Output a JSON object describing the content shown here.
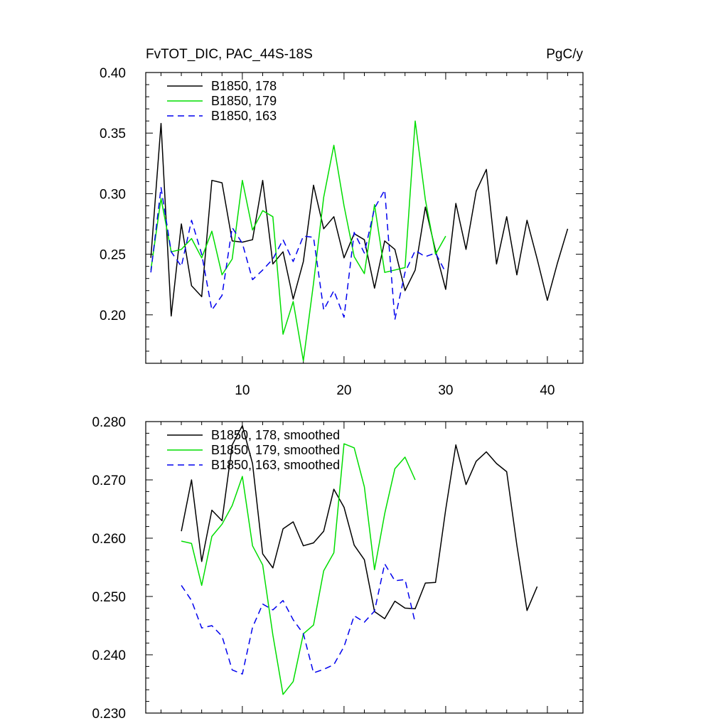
{
  "chart_data": [
    {
      "type": "line",
      "title": "FvTOT_DIC, PAC_44S-18S",
      "units": "PgC/y",
      "xlim": [
        0.5,
        43.5
      ],
      "ylim": [
        0.16,
        0.4
      ],
      "xticks": [
        10,
        20,
        30,
        40
      ],
      "yticks": [
        "0.40",
        "0.35",
        "0.30",
        "0.25",
        "0.20"
      ],
      "legend_position": "top-left",
      "series": [
        {
          "name": "B1850, 178",
          "color": "#000000",
          "dash": "solid",
          "x": [
            1,
            2,
            3,
            4,
            5,
            6,
            7,
            8,
            9,
            10,
            11,
            12,
            13,
            14,
            15,
            16,
            17,
            18,
            19,
            20,
            21,
            22,
            23,
            24,
            25,
            26,
            27,
            28,
            29,
            30,
            31,
            32,
            33,
            34,
            35,
            36,
            37,
            38,
            39,
            40,
            41,
            42
          ],
          "values": [
            0.247,
            0.358,
            0.199,
            0.275,
            0.224,
            0.215,
            0.311,
            0.309,
            0.261,
            0.26,
            0.262,
            0.311,
            0.242,
            0.252,
            0.213,
            0.244,
            0.307,
            0.271,
            0.281,
            0.247,
            0.267,
            0.262,
            0.222,
            0.261,
            0.254,
            0.22,
            0.237,
            0.289,
            0.253,
            0.221,
            0.292,
            0.254,
            0.302,
            0.32,
            0.242,
            0.281,
            0.233,
            0.278,
            0.246,
            0.212,
            0.243,
            0.271
          ]
        },
        {
          "name": "B1850, 179",
          "color": "#00dd00",
          "dash": "solid",
          "x": [
            1,
            2,
            3,
            4,
            5,
            6,
            7,
            8,
            9,
            10,
            11,
            12,
            13,
            14,
            15,
            16,
            17,
            18,
            19,
            20,
            21,
            22,
            23,
            24,
            25,
            26,
            27,
            28,
            29,
            30
          ],
          "values": [
            0.237,
            0.296,
            0.252,
            0.254,
            0.263,
            0.247,
            0.269,
            0.233,
            0.246,
            0.311,
            0.27,
            0.286,
            0.281,
            0.184,
            0.211,
            0.162,
            0.226,
            0.297,
            0.34,
            0.29,
            0.248,
            0.234,
            0.291,
            0.235,
            0.237,
            0.239,
            0.36,
            0.295,
            0.25,
            0.265
          ]
        },
        {
          "name": "B1850, 163",
          "color": "#0000ee",
          "dash": "dashed",
          "x": [
            1,
            2,
            3,
            4,
            5,
            6,
            7,
            8,
            9,
            10,
            11,
            12,
            13,
            14,
            15,
            16,
            17,
            18,
            19,
            20,
            21,
            22,
            23,
            24,
            25,
            26,
            27,
            28,
            29,
            30
          ],
          "values": [
            0.235,
            0.305,
            0.252,
            0.24,
            0.278,
            0.25,
            0.204,
            0.216,
            0.272,
            0.259,
            0.229,
            0.237,
            0.246,
            0.262,
            0.244,
            0.265,
            0.264,
            0.204,
            0.22,
            0.198,
            0.268,
            0.251,
            0.288,
            0.303,
            0.196,
            0.235,
            0.253,
            0.248,
            0.251,
            0.235
          ]
        }
      ]
    },
    {
      "type": "line",
      "title": "",
      "xlim": [
        0.5,
        43.5
      ],
      "ylim": [
        0.23,
        0.28
      ],
      "xticks": [
        10,
        20,
        30,
        40
      ],
      "yticks": [
        "0.280",
        "0.270",
        "0.260",
        "0.250",
        "0.240",
        "0.230"
      ],
      "legend_position": "top-left",
      "series": [
        {
          "name": "B1850, 178, smoothed",
          "color": "#000000",
          "dash": "solid",
          "x": [
            4,
            5,
            6,
            7,
            8,
            9,
            10,
            11,
            12,
            13,
            14,
            15,
            16,
            17,
            18,
            19,
            20,
            21,
            22,
            23,
            24,
            25,
            26,
            27,
            28,
            29,
            30,
            31,
            32,
            33,
            34,
            35,
            36,
            37,
            38,
            39
          ],
          "values": [
            0.2612,
            0.27,
            0.256,
            0.2648,
            0.263,
            0.276,
            0.2793,
            0.2728,
            0.2573,
            0.2549,
            0.2616,
            0.2628,
            0.2587,
            0.2592,
            0.2612,
            0.2684,
            0.2653,
            0.2588,
            0.2563,
            0.2474,
            0.2462,
            0.2492,
            0.248,
            0.2479,
            0.2523,
            0.2524,
            0.2649,
            0.276,
            0.2692,
            0.2732,
            0.2748,
            0.2728,
            0.2714,
            0.2588,
            0.2476,
            0.2517
          ]
        },
        {
          "name": "B1850, 179, smoothed",
          "color": "#00dd00",
          "dash": "solid",
          "x": [
            4,
            5,
            6,
            7,
            8,
            9,
            10,
            11,
            12,
            13,
            14,
            15,
            16,
            17,
            18,
            19,
            20,
            21,
            22,
            23,
            24,
            25,
            26,
            27
          ],
          "values": [
            0.2595,
            0.2591,
            0.2519,
            0.2603,
            0.2624,
            0.2656,
            0.2706,
            0.2587,
            0.2554,
            0.2434,
            0.2332,
            0.2354,
            0.2436,
            0.2451,
            0.2544,
            0.2575,
            0.2762,
            0.2755,
            0.2688,
            0.2546,
            0.2642,
            0.2719,
            0.2739,
            0.27
          ]
        },
        {
          "name": "B1850, 163, smoothed",
          "color": "#0000ee",
          "dash": "dashed",
          "x": [
            4,
            5,
            6,
            7,
            8,
            9,
            10,
            11,
            12,
            13,
            14,
            15,
            16,
            17,
            18,
            19,
            20,
            21,
            22,
            23,
            24,
            25,
            26,
            27
          ],
          "values": [
            0.2519,
            0.2493,
            0.2446,
            0.245,
            0.2432,
            0.2374,
            0.2367,
            0.2447,
            0.2487,
            0.2477,
            0.2493,
            0.246,
            0.2436,
            0.2369,
            0.2375,
            0.2383,
            0.2414,
            0.2467,
            0.2456,
            0.2475,
            0.2556,
            0.2527,
            0.2529,
            0.2455
          ]
        }
      ]
    }
  ]
}
